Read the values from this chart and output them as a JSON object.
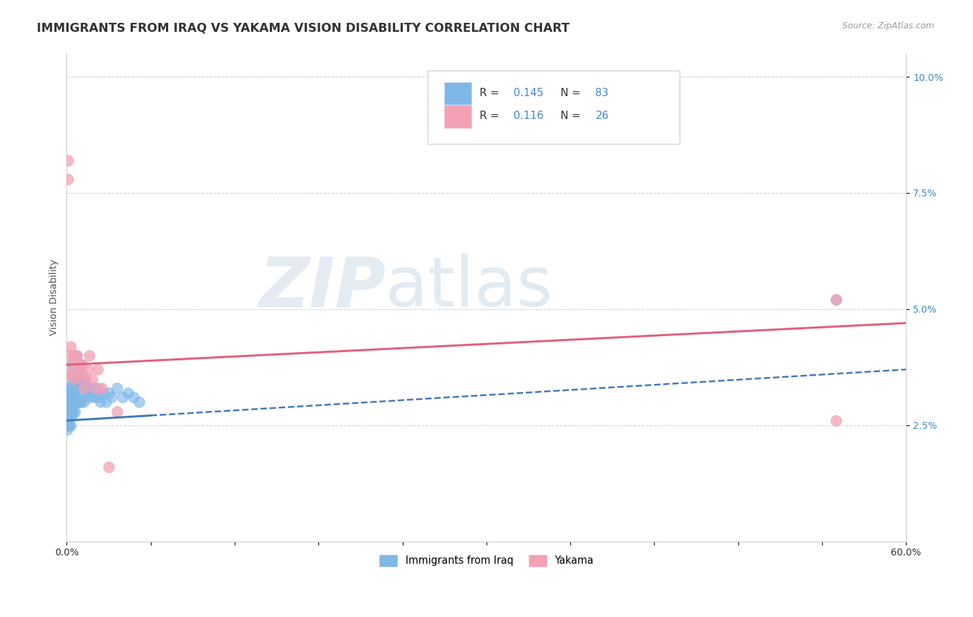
{
  "title": "IMMIGRANTS FROM IRAQ VS YAKAMA VISION DISABILITY CORRELATION CHART",
  "source_text": "Source: ZipAtlas.com",
  "ylabel": "Vision Disability",
  "xlim": [
    0.0,
    0.6
  ],
  "ylim": [
    0.0,
    0.105
  ],
  "xtick_positions": [
    0.0,
    0.06,
    0.12,
    0.18,
    0.24,
    0.3,
    0.36,
    0.42,
    0.48,
    0.54,
    0.6
  ],
  "xticklabels": [
    "0.0%",
    "",
    "",
    "",
    "",
    "",
    "",
    "",
    "",
    "",
    "60.0%"
  ],
  "ytick_positions": [
    0.025,
    0.05,
    0.075,
    0.1
  ],
  "ytick_labels": [
    "2.5%",
    "5.0%",
    "7.5%",
    "10.0%"
  ],
  "blue_color": "#7eb8e8",
  "pink_color": "#f4a0b5",
  "trend_blue": "#4477bb",
  "trend_pink": "#e06080",
  "watermark_zip": "ZIP",
  "watermark_atlas": "atlas",
  "background_color": "#ffffff",
  "grid_color": "#c8d4e8",
  "legend_r1": "0.145",
  "legend_n1": "83",
  "legend_r2": "0.116",
  "legend_n2": "26",
  "iraq_x": [
    0.0005,
    0.0005,
    0.0005,
    0.0008,
    0.001,
    0.001,
    0.001,
    0.001,
    0.001,
    0.0012,
    0.0013,
    0.0014,
    0.0015,
    0.0015,
    0.0015,
    0.002,
    0.002,
    0.002,
    0.002,
    0.0022,
    0.0023,
    0.0025,
    0.003,
    0.003,
    0.003,
    0.003,
    0.003,
    0.003,
    0.0032,
    0.0035,
    0.004,
    0.004,
    0.004,
    0.004,
    0.0042,
    0.0045,
    0.005,
    0.005,
    0.005,
    0.005,
    0.0052,
    0.0055,
    0.006,
    0.006,
    0.006,
    0.0062,
    0.007,
    0.007,
    0.007,
    0.0072,
    0.008,
    0.008,
    0.008,
    0.009,
    0.009,
    0.01,
    0.01,
    0.01,
    0.011,
    0.011,
    0.012,
    0.012,
    0.013,
    0.013,
    0.014,
    0.015,
    0.016,
    0.017,
    0.018,
    0.02,
    0.022,
    0.023,
    0.024,
    0.026,
    0.028,
    0.03,
    0.032,
    0.036,
    0.04,
    0.044,
    0.048,
    0.052,
    0.55
  ],
  "iraq_y": [
    0.026,
    0.028,
    0.024,
    0.029,
    0.028,
    0.026,
    0.03,
    0.027,
    0.025,
    0.03,
    0.028,
    0.032,
    0.028,
    0.025,
    0.027,
    0.033,
    0.03,
    0.027,
    0.025,
    0.032,
    0.028,
    0.03,
    0.036,
    0.032,
    0.028,
    0.03,
    0.025,
    0.027,
    0.033,
    0.03,
    0.038,
    0.034,
    0.03,
    0.027,
    0.032,
    0.029,
    0.04,
    0.036,
    0.032,
    0.028,
    0.034,
    0.031,
    0.036,
    0.032,
    0.028,
    0.033,
    0.04,
    0.036,
    0.03,
    0.034,
    0.038,
    0.034,
    0.03,
    0.036,
    0.03,
    0.038,
    0.034,
    0.03,
    0.036,
    0.032,
    0.034,
    0.03,
    0.035,
    0.031,
    0.033,
    0.033,
    0.032,
    0.031,
    0.033,
    0.031,
    0.033,
    0.031,
    0.03,
    0.032,
    0.03,
    0.032,
    0.031,
    0.033,
    0.031,
    0.032,
    0.031,
    0.03,
    0.052
  ],
  "yakama_x": [
    0.0005,
    0.001,
    0.001,
    0.002,
    0.003,
    0.004,
    0.005,
    0.005,
    0.006,
    0.007,
    0.008,
    0.009,
    0.01,
    0.011,
    0.012,
    0.013,
    0.015,
    0.016,
    0.018,
    0.02,
    0.022,
    0.025,
    0.03,
    0.036,
    0.55,
    0.55
  ],
  "yakama_y": [
    0.036,
    0.082,
    0.078,
    0.04,
    0.042,
    0.038,
    0.04,
    0.036,
    0.035,
    0.04,
    0.038,
    0.037,
    0.036,
    0.038,
    0.033,
    0.035,
    0.037,
    0.04,
    0.035,
    0.033,
    0.037,
    0.033,
    0.016,
    0.028,
    0.052,
    0.026
  ]
}
